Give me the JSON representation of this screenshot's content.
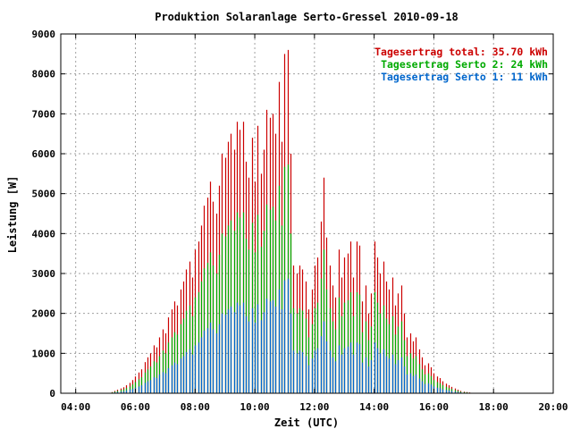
{
  "chart_data": {
    "type": "bar",
    "title": "Produktion Solaranlage Serto-Gressel 2010-09-18",
    "xlabel": "Zeit (UTC)",
    "ylabel": "Leistung [W]",
    "xlim": [
      3.5,
      20
    ],
    "ylim": [
      0,
      9000
    ],
    "x_ticks": [
      "04:00",
      "06:00",
      "08:00",
      "10:00",
      "12:00",
      "14:00",
      "16:00",
      "18:00",
      "20:00"
    ],
    "y_ticks": [
      "0",
      "1000",
      "2000",
      "3000",
      "4000",
      "5000",
      "6000",
      "7000",
      "8000",
      "9000"
    ],
    "grid": true,
    "legend_position": "top-right",
    "legend": [
      {
        "label": "Tagesertrag total: 35.70 kWh",
        "color": "#cc0000"
      },
      {
        "label": "Tagesertrag Serto 2: 24 kWh",
        "color": "#00aa00"
      },
      {
        "label": "Tagesertrag Serto 1: 11 kWh",
        "color": "#0066cc"
      }
    ],
    "x_hours": [
      5.2,
      5.3,
      5.4,
      5.5,
      5.6,
      5.7,
      5.8,
      5.9,
      6.0,
      6.1,
      6.2,
      6.3,
      6.4,
      6.5,
      6.6,
      6.7,
      6.8,
      6.9,
      7.0,
      7.1,
      7.2,
      7.3,
      7.4,
      7.5,
      7.6,
      7.7,
      7.8,
      7.9,
      8.0,
      8.1,
      8.2,
      8.3,
      8.4,
      8.5,
      8.6,
      8.7,
      8.8,
      8.9,
      9.0,
      9.1,
      9.2,
      9.3,
      9.4,
      9.5,
      9.6,
      9.7,
      9.8,
      9.9,
      10.0,
      10.1,
      10.2,
      10.3,
      10.4,
      10.5,
      10.6,
      10.7,
      10.8,
      10.9,
      11.0,
      11.1,
      11.2,
      11.3,
      11.4,
      11.5,
      11.6,
      11.7,
      11.8,
      11.9,
      12.0,
      12.1,
      12.2,
      12.3,
      12.4,
      12.5,
      12.6,
      12.7,
      12.8,
      12.9,
      13.0,
      13.1,
      13.2,
      13.3,
      13.4,
      13.5,
      13.6,
      13.7,
      13.8,
      13.9,
      14.0,
      14.1,
      14.2,
      14.3,
      14.4,
      14.5,
      14.6,
      14.7,
      14.8,
      14.9,
      15.0,
      15.1,
      15.2,
      15.3,
      15.4,
      15.5,
      15.6,
      15.7,
      15.8,
      15.9,
      16.0,
      16.1,
      16.2,
      16.3,
      16.4,
      16.5,
      16.6,
      16.7,
      16.8,
      16.9,
      17.0,
      17.1,
      17.2,
      17.3,
      17.4
    ],
    "series": [
      {
        "name": "Tagesertrag total: 35.70 kWh",
        "values": [
          30,
          60,
          90,
          120,
          150,
          200,
          260,
          330,
          420,
          520,
          600,
          780,
          900,
          1000,
          1200,
          1150,
          1400,
          1600,
          1500,
          1900,
          2100,
          2300,
          2200,
          2600,
          2800,
          3100,
          3300,
          2900,
          3600,
          3800,
          4200,
          4700,
          4900,
          5300,
          4800,
          4500,
          5200,
          6000,
          5900,
          6300,
          6500,
          6100,
          6800,
          6600,
          6800,
          5800,
          5400,
          6400,
          5300,
          6700,
          5500,
          6100,
          7100,
          6900,
          7000,
          6500,
          7800,
          6300,
          8500,
          8600,
          6000,
          3200,
          3000,
          3200,
          3100,
          2800,
          2100,
          2600,
          3200,
          3400,
          4300,
          5400,
          3900,
          3200,
          2700,
          2400,
          3600,
          2900,
          3400,
          3500,
          3800,
          2900,
          3800,
          3700,
          2300,
          2700,
          2000,
          2500,
          3800,
          3400,
          3000,
          3300,
          2800,
          2600,
          2900,
          2200,
          2500,
          2700,
          2000,
          1400,
          1500,
          1300,
          1400,
          1100,
          900,
          700,
          750,
          650,
          500,
          420,
          380,
          300,
          240,
          200,
          160,
          120,
          90,
          60,
          40,
          30,
          20
        ],
        "color": "#cc0000"
      },
      {
        "name": "Tagesertrag Serto 2: 24 kWh",
        "values": [
          20,
          40,
          60,
          80,
          100,
          130,
          170,
          220,
          280,
          350,
          400,
          520,
          600,
          670,
          800,
          770,
          930,
          1070,
          1000,
          1270,
          1400,
          1530,
          1470,
          1730,
          1870,
          2070,
          2200,
          1930,
          2400,
          2530,
          2800,
          3130,
          3270,
          3530,
          3200,
          3000,
          3470,
          4000,
          3930,
          4200,
          4330,
          4070,
          4530,
          4400,
          4530,
          3870,
          3600,
          4270,
          3530,
          4470,
          3670,
          4070,
          4730,
          4600,
          4670,
          4330,
          5200,
          4200,
          5670,
          5730,
          4000,
          2130,
          2000,
          2130,
          2070,
          1870,
          1400,
          1730,
          2130,
          2270,
          2870,
          3600,
          2600,
          2130,
          1800,
          1600,
          2400,
          1930,
          2270,
          2330,
          2530,
          1930,
          2530,
          2470,
          1530,
          1800,
          1330,
          1670,
          2530,
          2270,
          2000,
          2200,
          1870,
          1730,
          1930,
          1470,
          1670,
          1800,
          1330,
          930,
          1000,
          870,
          930,
          730,
          600,
          470,
          500,
          430,
          330,
          280,
          250,
          200,
          160,
          130,
          110,
          80,
          60,
          40,
          27,
          20,
          13
        ],
        "color": "#00aa00"
      },
      {
        "name": "Tagesertrag Serto 1: 11 kWh",
        "values": [
          10,
          20,
          30,
          40,
          50,
          70,
          90,
          110,
          140,
          170,
          200,
          260,
          300,
          330,
          400,
          380,
          470,
          530,
          500,
          630,
          700,
          770,
          730,
          870,
          930,
          1030,
          1100,
          970,
          1200,
          1270,
          1400,
          1570,
          1630,
          1770,
          1600,
          1500,
          1730,
          2000,
          1970,
          2100,
          2170,
          2030,
          2270,
          2200,
          2270,
          1930,
          1800,
          2130,
          1770,
          2230,
          1830,
          2030,
          2370,
          2300,
          2330,
          2170,
          2600,
          2100,
          2830,
          2870,
          2000,
          1070,
          1000,
          1070,
          1030,
          930,
          700,
          870,
          1070,
          1130,
          1430,
          1800,
          1300,
          1070,
          900,
          800,
          1200,
          970,
          1130,
          1170,
          1270,
          970,
          1270,
          1230,
          770,
          900,
          670,
          830,
          1270,
          1130,
          1000,
          1100,
          930,
          870,
          970,
          730,
          830,
          900,
          670,
          470,
          500,
          430,
          470,
          370,
          300,
          230,
          250,
          220,
          170,
          140,
          130,
          100,
          80,
          70,
          55,
          40,
          30,
          20,
          13,
          10,
          7
        ],
        "color": "#0066cc"
      }
    ]
  }
}
